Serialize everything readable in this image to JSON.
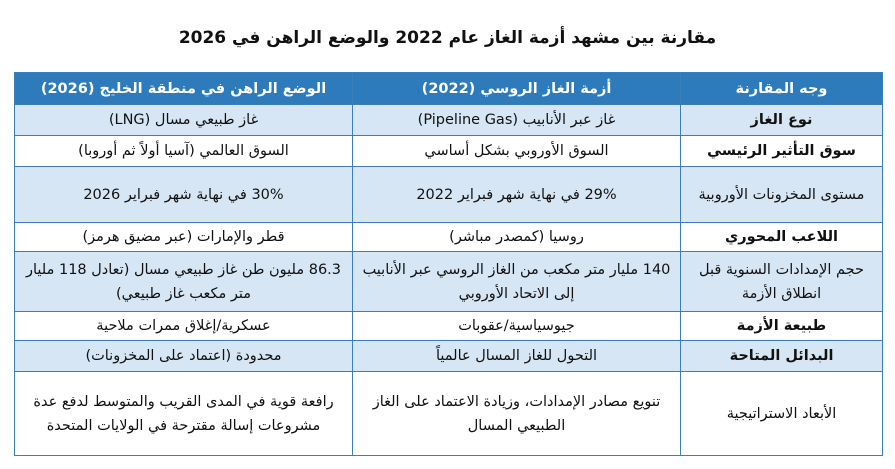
{
  "title": "مقارنة بين مشهد أزمة الغاز عام 2022 والوضع الراهن في 2026",
  "table": {
    "header": [
      "وجه المقارنة",
      "أزمة الغاز الروسي (2022)",
      "الوضع الراهن في منطقة الخليج (2026)"
    ],
    "rows": [
      [
        "نوع الغاز",
        "غاز عبر الأنابيب (Pipeline Gas)",
        "غاز طبيعي مسال (LNG)"
      ],
      [
        "سوق التأثير الرئيسي",
        "السوق الأوروبي بشكل أساسي",
        "السوق العالمي (آسيا أولاً ثم أوروبا)"
      ],
      [
        "مستوى المخزونات الأوروبية",
        "29% في نهاية شهر فبراير 2022",
        "30% في نهاية شهر فبراير 2026"
      ],
      [
        "اللاعب المحوري",
        "روسيا (كمصدر مباشر)",
        "قطر والإمارات (عبر مضيق هرمز)"
      ],
      [
        "حجم الإمدادات السنوية قبل انطلاق الأزمة",
        "140 مليار متر مكعب من الغاز الروسي عبر الأنابيب إلى الاتحاد الأوروبي",
        "86.3 مليون طن غاز طبيعي مسال (تعادل 118 مليار متر مكعب غاز طبيعي)"
      ],
      [
        "طبيعة الأزمة",
        "جيوسياسية/عقوبات",
        "عسكرية/إغلاق ممرات ملاحية"
      ],
      [
        "البدائل المتاحة",
        "التحول للغاز المسال عالمياً",
        "محدودة (اعتماد على المخزونات)"
      ],
      [
        "الأبعاد الاستراتيجية",
        "تنويع مصادر الإمدادات، وزيادة الاعتماد على الغاز الطبيعي المسال",
        "رافعة قوية في المدى القريب والمتوسط لدفع عدة مشروعات إسالة مقترحة في الولايات المتحدة"
      ]
    ],
    "bold_rows": [
      0,
      1,
      3,
      5,
      6
    ]
  }
}
